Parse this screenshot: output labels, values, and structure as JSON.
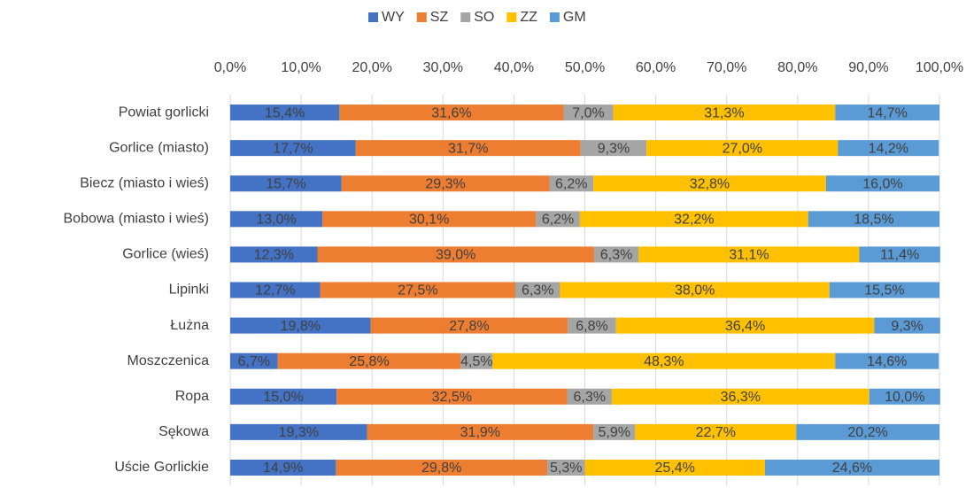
{
  "chart_data": {
    "type": "stacked-bar-horizontal",
    "categories": [
      "Powiat gorlicki",
      "Gorlice (miasto)",
      "Biecz (miasto i wieś)",
      "Bobowa (miasto i wieś)",
      "Gorlice (wieś)",
      "Lipinki",
      "Łużna",
      "Moszczenica",
      "Ropa",
      "Sękowa",
      "Uście Gorlickie"
    ],
    "series": [
      {
        "name": "WY",
        "color": "#4472c4",
        "values": [
          15.4,
          17.7,
          15.7,
          13.0,
          12.3,
          12.7,
          19.8,
          6.7,
          15.0,
          19.3,
          14.9
        ],
        "value_labels": [
          "15,4%",
          "17,7%",
          "15,7%",
          "13,0%",
          "12,3%",
          "12,7%",
          "19,8%",
          "6,7%",
          "15,0%",
          "19,3%",
          "14,9%"
        ]
      },
      {
        "name": "SZ",
        "color": "#ed7d31",
        "values": [
          31.6,
          31.7,
          29.3,
          30.1,
          39.0,
          27.5,
          27.8,
          25.8,
          32.5,
          31.9,
          29.8
        ],
        "value_labels": [
          "31,6%",
          "31,7%",
          "29,3%",
          "30,1%",
          "39,0%",
          "27,5%",
          "27,8%",
          "25,8%",
          "32,5%",
          "31,9%",
          "29,8%"
        ]
      },
      {
        "name": "SO",
        "color": "#a5a5a5",
        "values": [
          7.0,
          9.3,
          6.2,
          6.2,
          6.3,
          6.3,
          6.8,
          4.5,
          6.3,
          5.9,
          5.3
        ],
        "value_labels": [
          "7,0%",
          "9,3%",
          "6,2%",
          "6,2%",
          "6,3%",
          "6,3%",
          "6,8%",
          "4,5%",
          "6,3%",
          "5,9%",
          "5,3%"
        ]
      },
      {
        "name": "ZZ",
        "color": "#ffc000",
        "values": [
          31.3,
          27.0,
          32.8,
          32.2,
          31.1,
          38.0,
          36.4,
          48.3,
          36.3,
          22.7,
          25.4
        ],
        "value_labels": [
          "31,3%",
          "27,0%",
          "32,8%",
          "32,2%",
          "31,1%",
          "38,0%",
          "36,4%",
          "48,3%",
          "36,3%",
          "22,7%",
          "25,4%"
        ]
      },
      {
        "name": "GM",
        "color": "#5b9bd5",
        "values": [
          14.7,
          14.2,
          16.0,
          18.5,
          11.4,
          15.5,
          9.3,
          14.6,
          10.0,
          20.2,
          24.6
        ],
        "value_labels": [
          "14,7%",
          "14,2%",
          "16,0%",
          "18,5%",
          "11,4%",
          "15,5%",
          "9,3%",
          "14,6%",
          "10,0%",
          "20,2%",
          "24,6%"
        ]
      }
    ],
    "xlim": [
      0,
      100
    ],
    "xticks": [
      {
        "value": 0,
        "label": "0,0%"
      },
      {
        "value": 10,
        "label": "10,0%"
      },
      {
        "value": 20,
        "label": "20,0%"
      },
      {
        "value": 30,
        "label": "30,0%"
      },
      {
        "value": 40,
        "label": "40,0%"
      },
      {
        "value": 50,
        "label": "50,0%"
      },
      {
        "value": 60,
        "label": "60,0%"
      },
      {
        "value": 70,
        "label": "70,0%"
      },
      {
        "value": 80,
        "label": "80,0%"
      },
      {
        "value": 90,
        "label": "90,0%"
      },
      {
        "value": 100,
        "label": "100,0%"
      }
    ],
    "grid": true,
    "legend": "top"
  }
}
